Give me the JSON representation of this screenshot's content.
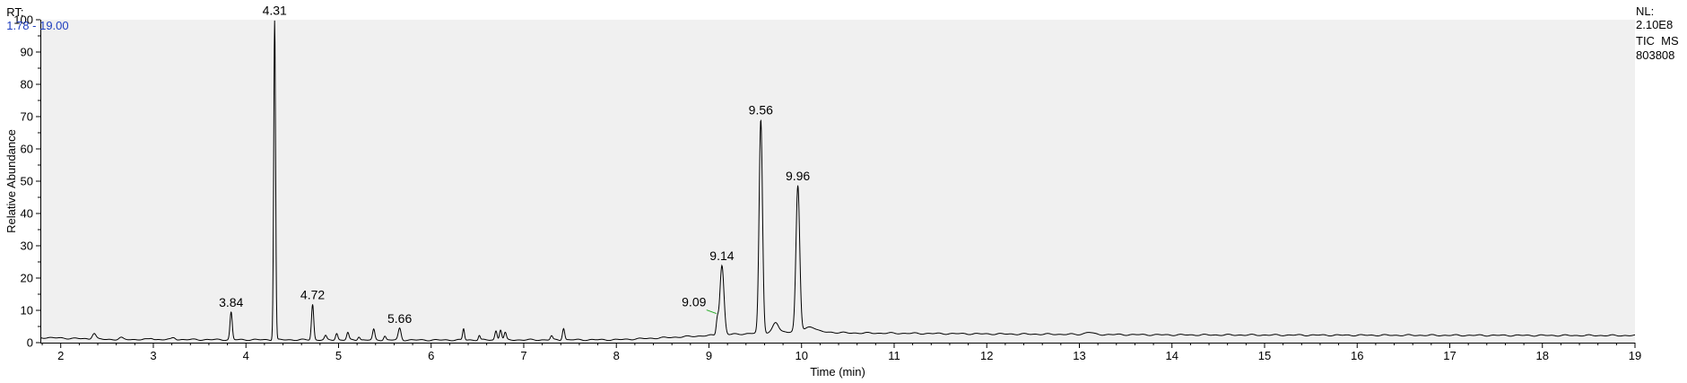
{
  "header": {
    "rt_prefix": "RT:",
    "rt_range": "1.78 - 19.00"
  },
  "info": {
    "line1": "NL:",
    "line2": "2.10E8",
    "line3": "TIC  MS",
    "line4": "803808"
  },
  "colors": {
    "plot_bg": "#f0f0f0",
    "trace": "#000000",
    "axis": "#000000",
    "marker": "#22aa22",
    "rt_range_text": "#1f3fbf"
  },
  "chart_data": {
    "type": "line",
    "xlabel": "Time (min)",
    "ylabel": "Relative Abundance",
    "xlim": [
      1.78,
      19.0
    ],
    "ylim": [
      0,
      100
    ],
    "xticks": [
      2,
      3,
      4,
      5,
      6,
      7,
      8,
      9,
      10,
      11,
      12,
      13,
      14,
      15,
      16,
      17,
      18,
      19
    ],
    "yticks": [
      0,
      10,
      20,
      30,
      40,
      50,
      60,
      70,
      80,
      90,
      100
    ],
    "grid": false,
    "baseline": [
      [
        1.78,
        1.6
      ],
      [
        2.5,
        1.0
      ],
      [
        4.0,
        0.9
      ],
      [
        6.0,
        0.8
      ],
      [
        8.0,
        0.9
      ],
      [
        8.5,
        1.5
      ],
      [
        9.0,
        2.2
      ],
      [
        10.0,
        3.6
      ],
      [
        10.5,
        3.0
      ],
      [
        12.0,
        2.7
      ],
      [
        14.0,
        2.4
      ],
      [
        16.0,
        2.3
      ],
      [
        19.0,
        2.2
      ]
    ],
    "peaks": [
      {
        "rt": 2.36,
        "height": 1.8,
        "width": 0.02
      },
      {
        "rt": 2.65,
        "height": 0.5,
        "width": 0.02
      },
      {
        "rt": 2.98,
        "height": 0.4,
        "width": 0.02
      },
      {
        "rt": 3.22,
        "height": 0.6,
        "width": 0.02
      },
      {
        "rt": 3.84,
        "height": 8.5,
        "width": 0.012,
        "label": "3.84"
      },
      {
        "rt": 4.31,
        "height": 99.0,
        "width": 0.01,
        "label": "4.31"
      },
      {
        "rt": 4.72,
        "height": 11.0,
        "width": 0.012,
        "label": "4.72"
      },
      {
        "rt": 4.86,
        "height": 1.2,
        "width": 0.012
      },
      {
        "rt": 4.98,
        "height": 2.0,
        "width": 0.012
      },
      {
        "rt": 5.1,
        "height": 2.2,
        "width": 0.012
      },
      {
        "rt": 5.22,
        "height": 1.0,
        "width": 0.012
      },
      {
        "rt": 5.38,
        "height": 3.2,
        "width": 0.012
      },
      {
        "rt": 5.5,
        "height": 1.2,
        "width": 0.012
      },
      {
        "rt": 5.66,
        "height": 3.6,
        "width": 0.015,
        "label": "5.66"
      },
      {
        "rt": 6.35,
        "height": 3.5,
        "width": 0.01
      },
      {
        "rt": 6.52,
        "height": 1.4,
        "width": 0.01
      },
      {
        "rt": 6.7,
        "height": 2.8,
        "width": 0.012
      },
      {
        "rt": 6.75,
        "height": 3.2,
        "width": 0.012
      },
      {
        "rt": 6.8,
        "height": 2.2,
        "width": 0.012
      },
      {
        "rt": 7.3,
        "height": 1.2,
        "width": 0.012
      },
      {
        "rt": 7.43,
        "height": 3.6,
        "width": 0.012
      },
      {
        "rt": 9.09,
        "height": 4.5,
        "width": 0.012,
        "label": "9.09"
      },
      {
        "rt": 9.14,
        "height": 21.5,
        "width": 0.022,
        "label": "9.14"
      },
      {
        "rt": 9.56,
        "height": 66.0,
        "width": 0.018,
        "label": "9.56"
      },
      {
        "rt": 9.72,
        "height": 3.0,
        "width": 0.03
      },
      {
        "rt": 9.96,
        "height": 45.0,
        "width": 0.02,
        "label": "9.96"
      },
      {
        "rt": 10.1,
        "height": 1.5,
        "width": 0.05
      },
      {
        "rt": 13.1,
        "height": 0.7,
        "width": 0.04
      }
    ]
  }
}
